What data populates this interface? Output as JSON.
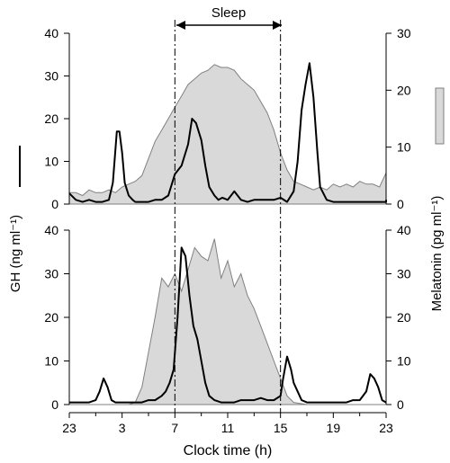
{
  "chart_data": [
    {
      "type": "area",
      "panel": "top",
      "x_ticks": [
        "23",
        "3",
        "7",
        "11",
        "15",
        "19",
        "23"
      ],
      "left_axis": {
        "label": "GH (ng ml⁻¹)",
        "ticks": [
          0,
          10,
          20,
          30,
          40
        ],
        "ylim": [
          0,
          40
        ]
      },
      "right_axis": {
        "label": "Melatonin (pg ml⁻¹)",
        "ticks": [
          0,
          10,
          20,
          30
        ],
        "ylim": [
          0,
          30
        ]
      },
      "annotation": {
        "text": "Sleep",
        "from_h": 7,
        "to_h": 15
      },
      "series": [
        {
          "name": "GH",
          "style": "line",
          "axis": "left",
          "x_hours": [
            23,
            23.5,
            24,
            24.5,
            25,
            25.5,
            26,
            26.3,
            26.6,
            26.8,
            27,
            27.2,
            27.5,
            27.8,
            28,
            28.5,
            29,
            29.5,
            30,
            30.5,
            31,
            31.5,
            32,
            32.3,
            32.6,
            33,
            33.3,
            33.6,
            34,
            34.3,
            34.6,
            35,
            35.5,
            36,
            36.5,
            37,
            37.5,
            38,
            38.5,
            39,
            39.5,
            40,
            40.3,
            40.6,
            40.9,
            41.2,
            41.5,
            41.8,
            42,
            42.5,
            43,
            43.5,
            44,
            44.5,
            45,
            45.5,
            46,
            46.5,
            47,
            47
          ],
          "values": [
            2.5,
            1,
            0.5,
            1,
            0.5,
            0.5,
            1,
            5,
            17,
            17,
            12,
            5,
            2,
            1,
            0.5,
            0.5,
            0.5,
            1,
            1,
            2,
            7,
            9,
            14,
            20,
            19,
            15,
            9,
            4,
            2,
            1,
            1.5,
            1,
            3,
            1,
            0.5,
            1,
            1,
            1,
            1,
            1.5,
            0.5,
            3,
            10,
            22,
            28,
            33,
            25,
            12,
            4,
            1,
            0.5,
            0.5,
            0.5,
            0.5,
            0.5,
            0.5,
            0.5,
            0.5,
            0.5,
            1
          ]
        },
        {
          "name": "Melatonin",
          "style": "area",
          "axis": "right",
          "x_hours": [
            23,
            23.5,
            24,
            24.5,
            25,
            25.5,
            26,
            26.5,
            27,
            27.5,
            28,
            28.5,
            29,
            29.5,
            30,
            30.5,
            31,
            31.5,
            32,
            32.5,
            33,
            33.5,
            34,
            34.5,
            35,
            35.5,
            36,
            36.5,
            37,
            37.5,
            38,
            38.5,
            39,
            39.5,
            40,
            40.5,
            41,
            41.5,
            42,
            42.5,
            43,
            43.5,
            44,
            44.5,
            45,
            45.5,
            46,
            46.5,
            47
          ],
          "values": [
            2,
            2,
            1.5,
            2.5,
            2,
            2,
            2.5,
            2,
            3,
            3.5,
            4,
            5,
            8,
            11,
            13,
            15,
            17,
            19,
            21,
            22,
            23,
            23.5,
            24.5,
            24,
            24,
            23.5,
            22,
            21,
            20,
            18,
            16,
            13,
            9,
            6,
            4,
            3.5,
            3,
            2.5,
            3,
            2.5,
            3.5,
            3,
            3.5,
            3,
            4,
            3.5,
            3.5,
            3,
            5.5
          ]
        }
      ]
    },
    {
      "type": "area",
      "panel": "bottom",
      "x_ticks": [
        "23",
        "3",
        "7",
        "11",
        "15",
        "19",
        "23"
      ],
      "left_axis": {
        "label": "GH (ng ml⁻¹)",
        "ticks": [
          0,
          10,
          20,
          30,
          40
        ],
        "ylim": [
          0,
          40
        ]
      },
      "right_axis": {
        "label": "Melatonin (pg ml⁻¹)",
        "ticks": [
          0,
          10,
          20,
          30,
          40
        ],
        "ylim": [
          0,
          40
        ]
      },
      "series": [
        {
          "name": "GH",
          "style": "line",
          "axis": "left",
          "x_hours": [
            23,
            23.5,
            24,
            24.5,
            25,
            25.3,
            25.6,
            25.9,
            26.2,
            26.5,
            27,
            27.5,
            28,
            28.5,
            29,
            29.5,
            30,
            30.3,
            30.6,
            30.9,
            31.2,
            31.5,
            31.8,
            32.1,
            32.4,
            32.7,
            33,
            33.3,
            33.6,
            34,
            34.5,
            35,
            35.5,
            36,
            36.5,
            37,
            37.5,
            38,
            38.5,
            39,
            39.2,
            39.5,
            39.8,
            40,
            40.3,
            40.6,
            41,
            41.5,
            42,
            42.5,
            43,
            43.5,
            44,
            44.5,
            45,
            45.5,
            45.8,
            46.1,
            46.4,
            46.7,
            47
          ],
          "values": [
            0.5,
            0.5,
            0.5,
            0.5,
            1,
            3,
            6,
            4,
            1,
            0.5,
            0.5,
            0.5,
            0.5,
            0.5,
            1,
            1,
            2,
            3,
            5,
            8,
            20,
            36,
            34,
            25,
            18,
            15,
            10,
            5,
            2,
            1,
            0.5,
            0.5,
            0.5,
            1,
            1,
            1,
            1.5,
            1,
            1,
            2,
            6,
            11,
            8,
            5,
            3,
            1,
            0.5,
            0.5,
            0.5,
            0.5,
            0.5,
            0.5,
            0.5,
            1,
            1,
            3,
            7,
            6,
            4,
            1,
            0.5
          ]
        },
        {
          "name": "Melatonin",
          "style": "area",
          "axis": "right",
          "x_hours": [
            23,
            24,
            25,
            26,
            27,
            27.5,
            28,
            28.5,
            29,
            29.5,
            30,
            30.5,
            31,
            31.5,
            32,
            32.5,
            33,
            33.5,
            34,
            34.5,
            35,
            35.5,
            36,
            36.5,
            37,
            37.5,
            38,
            38.5,
            39,
            39.5,
            40,
            41,
            42,
            43,
            44,
            45,
            46,
            47
          ],
          "values": [
            0,
            0,
            0,
            0,
            0,
            0,
            0.5,
            4,
            12,
            20,
            29,
            27,
            30,
            26,
            31,
            36,
            34,
            33,
            38,
            29,
            33,
            27,
            30,
            25,
            22,
            18,
            14,
            10,
            6,
            2,
            0.5,
            0,
            0,
            0,
            0,
            0,
            0,
            0
          ]
        }
      ]
    }
  ],
  "axis_label_left": "GH (ng ml⁻¹)",
  "axis_label_right": "Melatonin (pg ml⁻¹)",
  "axis_label_x": "Clock time (h)",
  "sleep_label": "Sleep",
  "colors": {
    "melatonin_fill": "#d9d9d9",
    "melatonin_stroke": "#808080",
    "gh_line": "#000000"
  }
}
